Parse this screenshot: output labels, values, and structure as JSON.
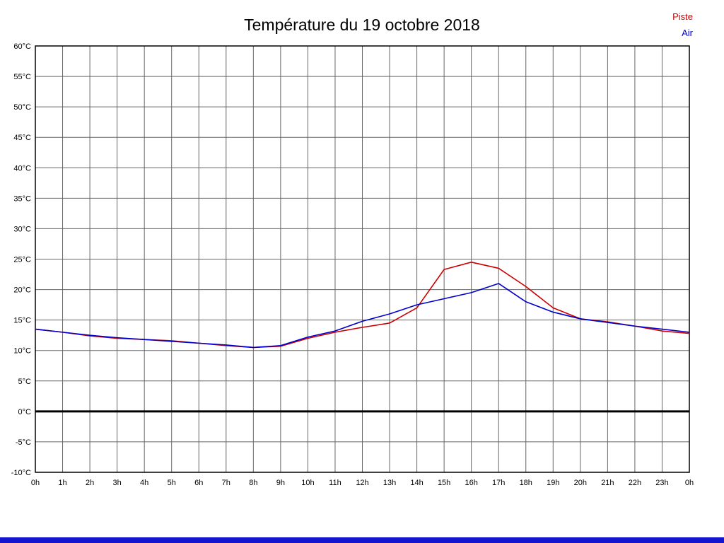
{
  "title": "Température du 19 octobre 2018",
  "legend": {
    "items": [
      {
        "label": "Piste",
        "color": "#cc0000"
      },
      {
        "label": "Air",
        "color": "#0000cc"
      }
    ]
  },
  "footer_bar": {
    "color": "#1515d0"
  },
  "chart_data": {
    "type": "line",
    "title": "Température du 19 octobre 2018",
    "xlabel": "",
    "ylabel": "",
    "ylim": [
      -10,
      60
    ],
    "y_tick_step": 5,
    "y_tick_suffix": "°C",
    "grid": true,
    "grid_color": "#666666",
    "border_color": "#000000",
    "zero_line": {
      "value": 0,
      "color": "#000000",
      "width": 3
    },
    "x_labels": [
      "0h",
      "1h",
      "2h",
      "3h",
      "4h",
      "5h",
      "6h",
      "7h",
      "8h",
      "9h",
      "10h",
      "11h",
      "12h",
      "13h",
      "14h",
      "15h",
      "16h",
      "17h",
      "18h",
      "19h",
      "20h",
      "21h",
      "22h",
      "23h",
      "0h"
    ],
    "x_hours": [
      0,
      1,
      2,
      3,
      4,
      5,
      6,
      7,
      8,
      9,
      10,
      11,
      12,
      13,
      14,
      15,
      16,
      17,
      18,
      19,
      20,
      21,
      22,
      23,
      24
    ],
    "series": [
      {
        "name": "Piste",
        "color": "#cc0000",
        "values": [
          13.5,
          13.0,
          12.4,
          12.0,
          11.8,
          11.6,
          11.2,
          10.8,
          10.5,
          10.7,
          12.0,
          13.0,
          13.8,
          14.5,
          17.0,
          23.3,
          24.5,
          23.5,
          20.5,
          17.0,
          15.2,
          14.7,
          14.0,
          13.2,
          12.8
        ]
      },
      {
        "name": "Air",
        "color": "#0000cc",
        "values": [
          13.5,
          13.0,
          12.5,
          12.1,
          11.8,
          11.5,
          11.2,
          10.9,
          10.5,
          10.8,
          12.2,
          13.2,
          14.8,
          16.0,
          17.5,
          18.5,
          19.5,
          21.0,
          18.0,
          16.3,
          15.2,
          14.6,
          14.0,
          13.5,
          13.0
        ]
      }
    ],
    "legend_position": "top-right"
  }
}
